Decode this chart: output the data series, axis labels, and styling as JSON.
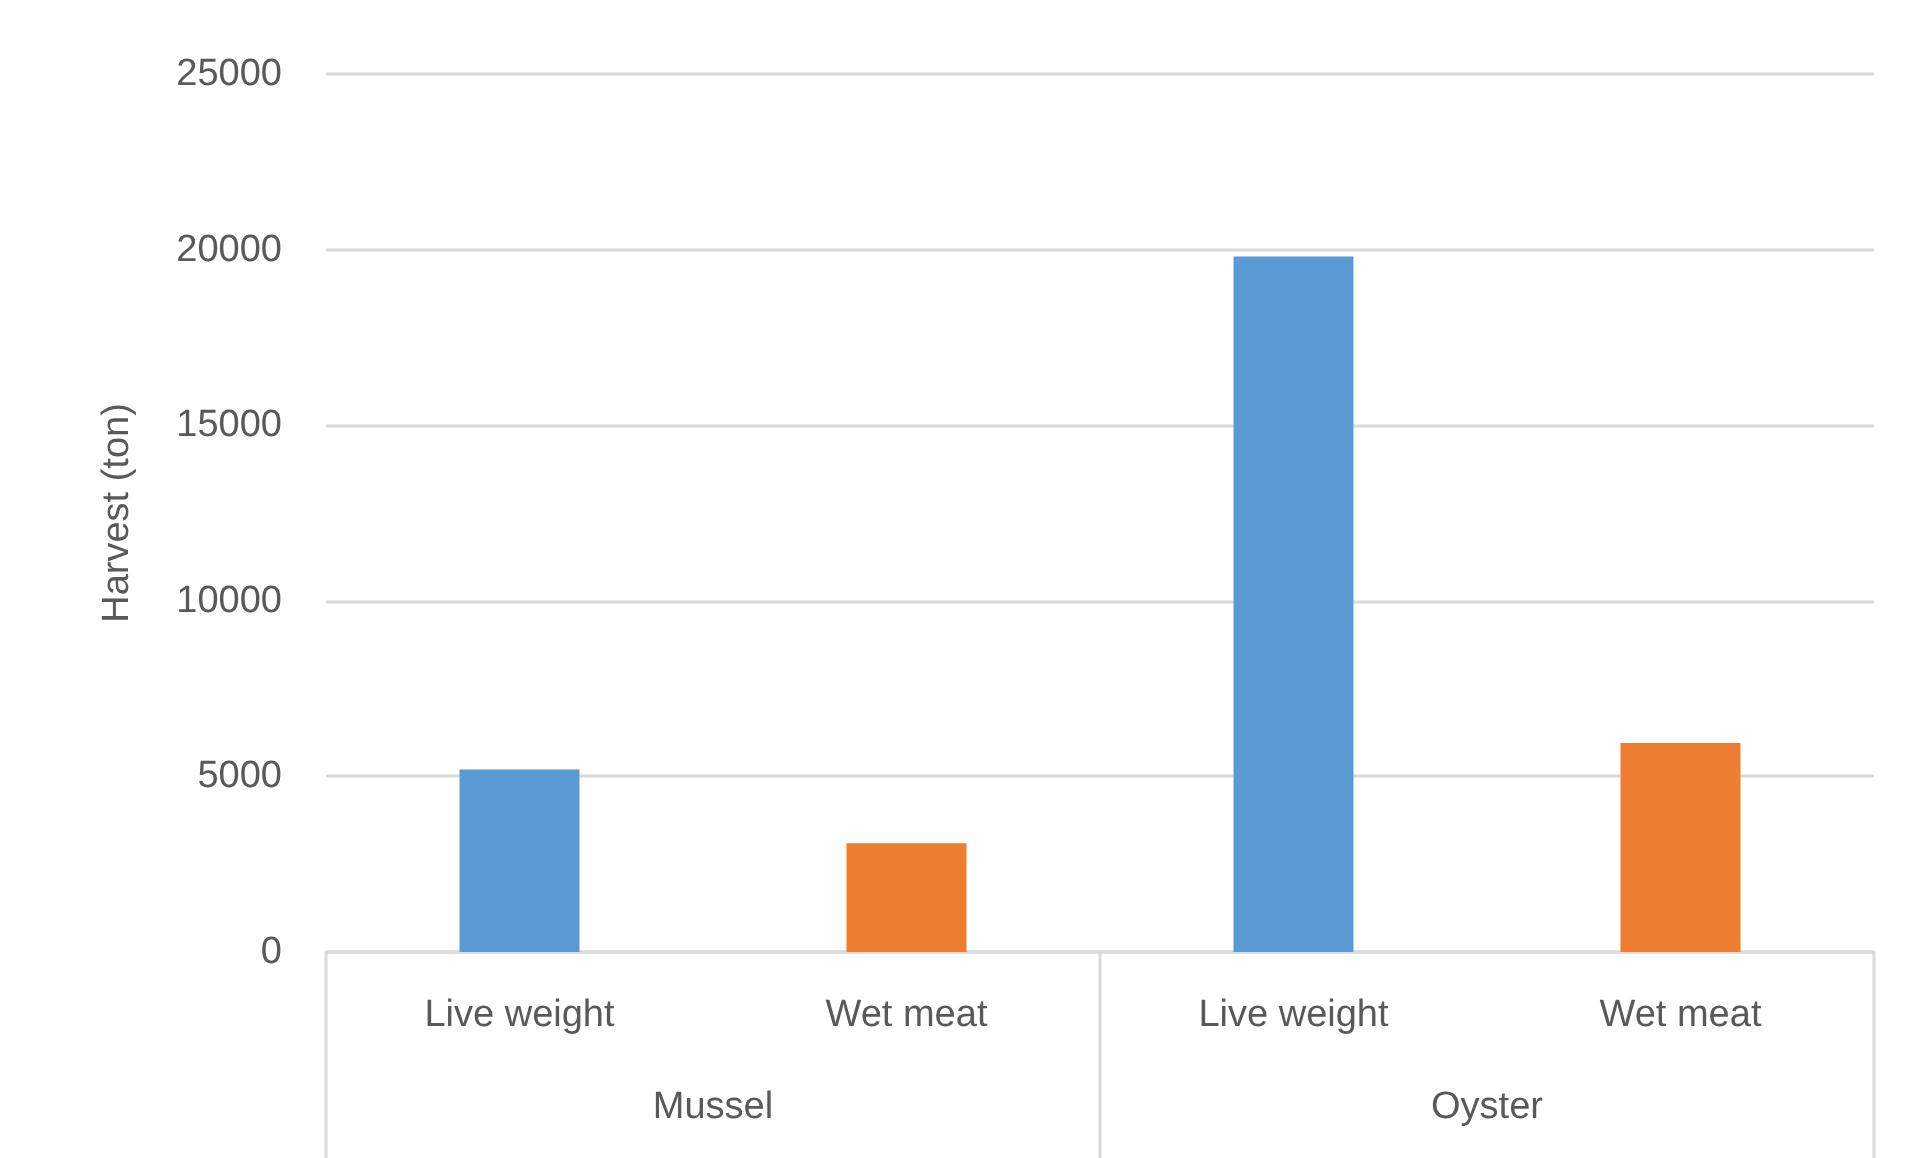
{
  "chart_data": {
    "type": "bar",
    "ylabel": "Harvest (ton)",
    "categories": [
      "Mussel",
      "Oyster"
    ],
    "series": [
      {
        "name": "Live weight",
        "color": "#5b9bd5",
        "values": [
          5200,
          19800
        ]
      },
      {
        "name": "Wet meat",
        "color": "#ed7d31",
        "values": [
          3100,
          5950
        ]
      }
    ],
    "ylim": [
      0,
      25000
    ],
    "yticks": [
      0,
      5000,
      10000,
      15000,
      20000,
      25000
    ],
    "grid": "y"
  }
}
